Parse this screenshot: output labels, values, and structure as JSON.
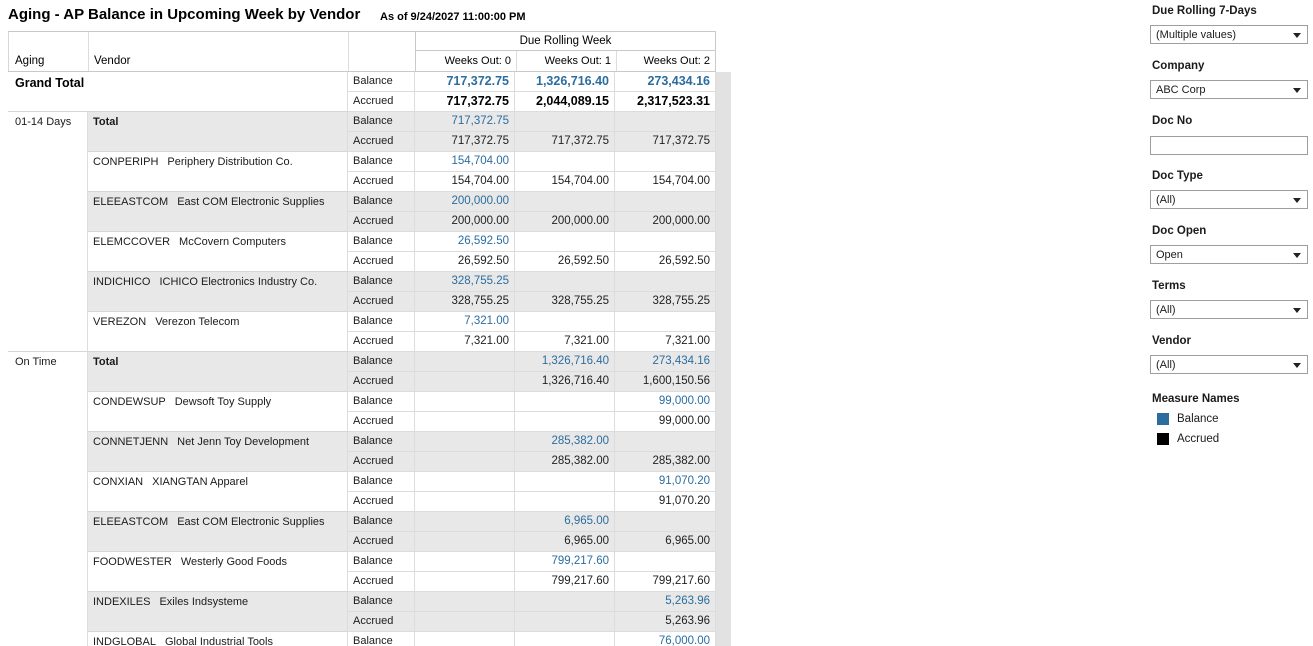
{
  "title": "Aging - AP Balance in Upcoming Week by Vendor",
  "subtitle": "As of 9/24/2027 11:00:00 PM",
  "colors": {
    "balance_blue": "#2b6d9e",
    "accrued_black": "#000000",
    "band_gray": "#e8e8e8"
  },
  "table": {
    "group_header": "Due Rolling Week",
    "aging_header": "Aging",
    "vendor_header": "Vendor",
    "week_headers": [
      "Weeks Out: 0",
      "Weeks Out: 1",
      "Weeks Out: 2"
    ],
    "measure_labels": [
      "Balance",
      "Accrued"
    ],
    "rows": [
      {
        "aging": "Grand Total",
        "code": "",
        "name": "",
        "style": "grand",
        "band": false,
        "aging_end": true,
        "balance": [
          "717,372.75",
          "1,326,716.40",
          "273,434.16"
        ],
        "accrued": [
          "717,372.75",
          "2,044,089.15",
          "2,317,523.31"
        ]
      },
      {
        "aging": "01-14 Days",
        "code": "",
        "name": "Total",
        "style": "total",
        "band": true,
        "balance": [
          "717,372.75",
          "",
          ""
        ],
        "accrued": [
          "717,372.75",
          "717,372.75",
          "717,372.75"
        ]
      },
      {
        "aging": "",
        "code": "CONPERIPH",
        "name": "Periphery Distribution Co.",
        "band": false,
        "balance": [
          "154,704.00",
          "",
          ""
        ],
        "accrued": [
          "154,704.00",
          "154,704.00",
          "154,704.00"
        ]
      },
      {
        "aging": "",
        "code": "ELEEASTCOM",
        "name": "East COM Electronic Supplies",
        "band": true,
        "balance": [
          "200,000.00",
          "",
          ""
        ],
        "accrued": [
          "200,000.00",
          "200,000.00",
          "200,000.00"
        ]
      },
      {
        "aging": "",
        "code": "ELEMCCOVER",
        "name": "McCovern Computers",
        "band": false,
        "balance": [
          "26,592.50",
          "",
          ""
        ],
        "accrued": [
          "26,592.50",
          "26,592.50",
          "26,592.50"
        ]
      },
      {
        "aging": "",
        "code": "INDICHICO",
        "name": "ICHICO Electronics Industry Co.",
        "band": true,
        "balance": [
          "328,755.25",
          "",
          ""
        ],
        "accrued": [
          "328,755.25",
          "328,755.25",
          "328,755.25"
        ]
      },
      {
        "aging": "",
        "code": "VEREZON",
        "name": "Verezon Telecom",
        "band": false,
        "aging_end": true,
        "balance": [
          "7,321.00",
          "",
          ""
        ],
        "accrued": [
          "7,321.00",
          "7,321.00",
          "7,321.00"
        ]
      },
      {
        "aging": "On Time",
        "code": "",
        "name": "Total",
        "style": "total",
        "band": true,
        "balance": [
          "",
          "1,326,716.40",
          "273,434.16"
        ],
        "accrued": [
          "",
          "1,326,716.40",
          "1,600,150.56"
        ]
      },
      {
        "aging": "",
        "code": "CONDEWSUP",
        "name": "Dewsoft Toy Supply",
        "band": false,
        "balance": [
          "",
          "",
          "99,000.00"
        ],
        "accrued": [
          "",
          "",
          "99,000.00"
        ]
      },
      {
        "aging": "",
        "code": "CONNETJENN",
        "name": "Net Jenn Toy Development",
        "band": true,
        "balance": [
          "",
          "285,382.00",
          ""
        ],
        "accrued": [
          "",
          "285,382.00",
          "285,382.00"
        ]
      },
      {
        "aging": "",
        "code": "CONXIAN",
        "name": "XIANGTAN Apparel",
        "band": false,
        "balance": [
          "",
          "",
          "91,070.20"
        ],
        "accrued": [
          "",
          "",
          "91,070.20"
        ]
      },
      {
        "aging": "",
        "code": "ELEEASTCOM",
        "name": "East COM Electronic Supplies",
        "band": true,
        "balance": [
          "",
          "6,965.00",
          ""
        ],
        "accrued": [
          "",
          "6,965.00",
          "6,965.00"
        ]
      },
      {
        "aging": "",
        "code": "FOODWESTER",
        "name": "Westerly Good Foods",
        "band": false,
        "balance": [
          "",
          "799,217.60",
          ""
        ],
        "accrued": [
          "",
          "799,217.60",
          "799,217.60"
        ]
      },
      {
        "aging": "",
        "code": "INDEXILES",
        "name": "Exiles Indsysteme",
        "band": true,
        "balance": [
          "",
          "",
          "5,263.96"
        ],
        "accrued": [
          "",
          "",
          "5,263.96"
        ]
      },
      {
        "aging": "",
        "code": "INDGLOBAL",
        "name": "Global Industrial Tools",
        "band": false,
        "balance": [
          "",
          "",
          "76,000.00"
        ],
        "accrued": [
          "",
          "",
          ""
        ]
      }
    ]
  },
  "filters": [
    {
      "label": "Due Rolling 7-Days",
      "type": "dropdown",
      "value": "(Multiple values)"
    },
    {
      "label": "Company",
      "type": "dropdown",
      "value": "ABC Corp"
    },
    {
      "label": "Doc No",
      "type": "text",
      "value": "",
      "placeholder": ""
    },
    {
      "label": "Doc Type",
      "type": "dropdown",
      "value": "(All)"
    },
    {
      "label": "Doc Open",
      "type": "dropdown",
      "value": "Open"
    },
    {
      "label": "Terms",
      "type": "dropdown",
      "value": "(All)"
    },
    {
      "label": "Vendor",
      "type": "dropdown",
      "value": "(All)"
    }
  ],
  "legend": {
    "title": "Measure Names",
    "items": [
      {
        "label": "Balance",
        "color": "#2b6d9e"
      },
      {
        "label": "Accrued",
        "color": "#000000"
      }
    ]
  }
}
